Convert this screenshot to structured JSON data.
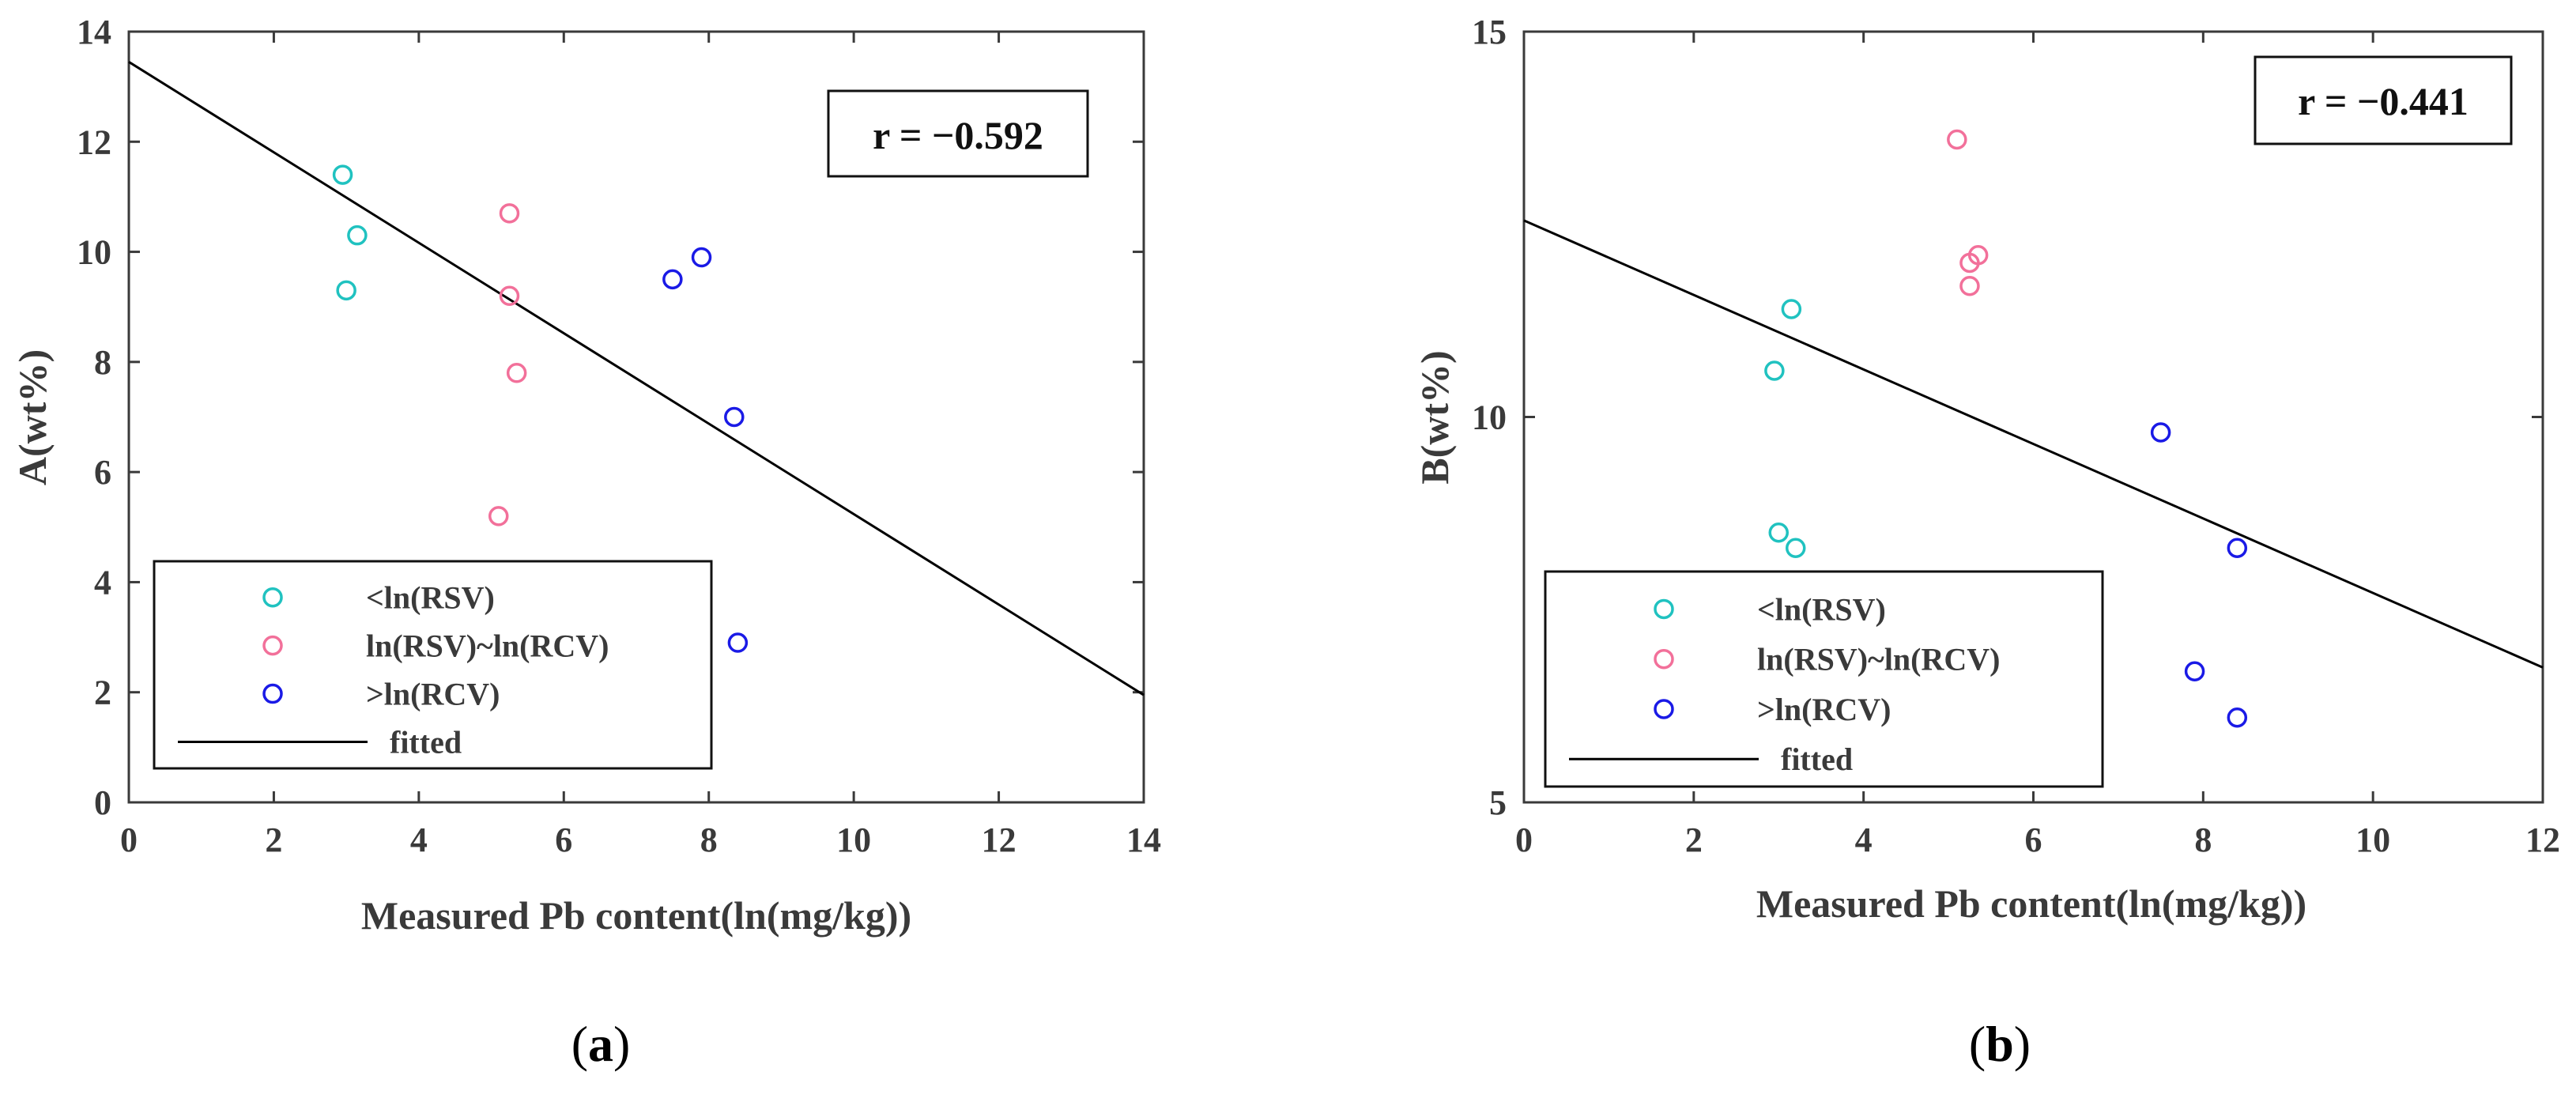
{
  "colors": {
    "lt_rsv": "#20c2c0",
    "mid": "#f2709a",
    "gt_rcv": "#1a1ae6",
    "fit": "#000000",
    "axis": "#3a3a3a"
  },
  "legend_labels": {
    "lt_rsv": "<ln(RSV)",
    "mid": "ln(RSV)~ln(RCV)",
    "gt_rcv": ">ln(RCV)",
    "fit": "fitted"
  },
  "chart_data": [
    {
      "type": "scatter",
      "panel": "a",
      "caption_open": "(",
      "caption_letter": "a",
      "caption_close": ")",
      "xlabel": "Measured Pb content(ln(mg/kg))",
      "ylabel": "A(wt%)",
      "xlim": [
        0,
        14
      ],
      "ylim": [
        0,
        14
      ],
      "xticks": [
        0,
        2,
        4,
        6,
        8,
        10,
        12,
        14
      ],
      "yticks": [
        0,
        2,
        4,
        6,
        8,
        10,
        12,
        14
      ],
      "r_text": "r = −0.592",
      "legend_position": "bottom-left",
      "series": [
        {
          "name": "<ln(RSV)",
          "key": "lt_rsv",
          "points": [
            [
              2.95,
              11.4
            ],
            [
              3.15,
              10.3
            ],
            [
              3.0,
              9.3
            ]
          ]
        },
        {
          "name": "ln(RSV)~ln(RCV)",
          "key": "mid",
          "points": [
            [
              5.25,
              10.7
            ],
            [
              5.25,
              9.2
            ],
            [
              5.35,
              7.8
            ],
            [
              5.1,
              5.2
            ]
          ]
        },
        {
          "name": ">ln(RCV)",
          "key": "gt_rcv",
          "points": [
            [
              7.9,
              9.9
            ],
            [
              7.5,
              9.5
            ],
            [
              8.35,
              7.0
            ],
            [
              8.4,
              2.9
            ]
          ]
        }
      ],
      "fit": {
        "name": "fitted",
        "x": [
          0,
          14
        ],
        "y": [
          13.45,
          1.95
        ]
      }
    },
    {
      "type": "scatter",
      "panel": "b",
      "caption_open": "(",
      "caption_letter": "b",
      "caption_close": ")",
      "xlabel": "Measured Pb content(ln(mg/kg))",
      "ylabel": "B(wt%)",
      "xlim": [
        0,
        12
      ],
      "ylim": [
        5,
        15
      ],
      "xticks": [
        0,
        2,
        4,
        6,
        8,
        10,
        12
      ],
      "yticks": [
        5,
        10,
        15
      ],
      "r_text": "r = −0.441",
      "legend_position": "bottom-left",
      "series": [
        {
          "name": "<ln(RSV)",
          "key": "lt_rsv",
          "points": [
            [
              3.15,
              11.4
            ],
            [
              2.95,
              10.6
            ],
            [
              3.0,
              8.5
            ],
            [
              3.2,
              8.3
            ]
          ]
        },
        {
          "name": "ln(RSV)~ln(RCV)",
          "key": "mid",
          "points": [
            [
              5.1,
              13.6
            ],
            [
              5.35,
              12.1
            ],
            [
              5.25,
              12.0
            ],
            [
              5.25,
              11.7
            ]
          ]
        },
        {
          "name": ">ln(RCV)",
          "key": "gt_rcv",
          "points": [
            [
              7.5,
              9.8
            ],
            [
              8.4,
              8.3
            ],
            [
              7.9,
              6.7
            ],
            [
              8.4,
              6.1
            ]
          ]
        }
      ],
      "fit": {
        "name": "fitted",
        "x": [
          0,
          12
        ],
        "y": [
          12.55,
          6.75
        ]
      }
    }
  ]
}
